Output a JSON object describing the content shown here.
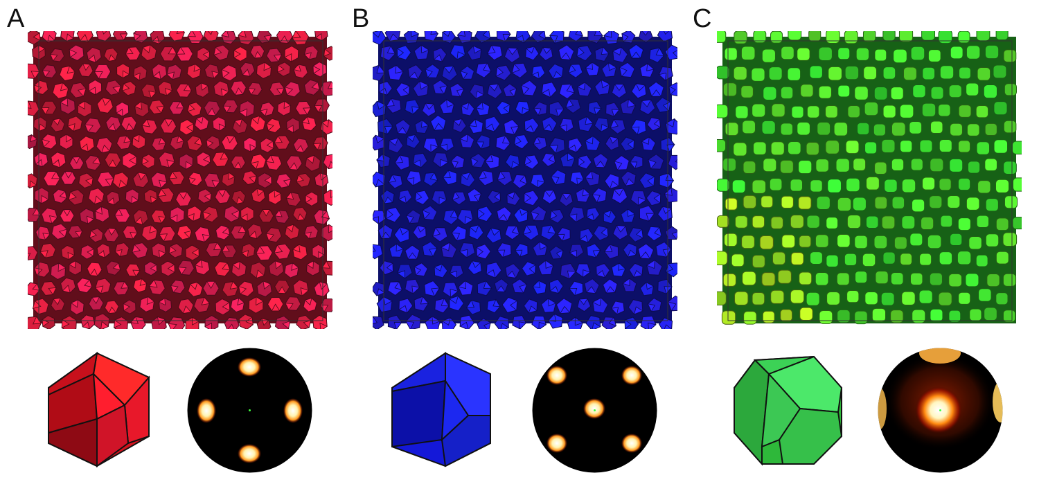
{
  "panels": [
    {
      "label": "A",
      "shape_name": "icosahedron",
      "colors": {
        "base": "#d81e3c",
        "light": "#ff2a4e",
        "dark": "#8a0c22",
        "accent": "#c0187a"
      },
      "bop_pattern": "icosahedral-six-spot"
    },
    {
      "label": "B",
      "shape_name": "pentagonal-polyhedron",
      "colors": {
        "base": "#1a22e6",
        "light": "#3a3cff",
        "dark": "#0a0e90",
        "accent": "#4a18d0"
      },
      "bop_pattern": "five-spot"
    },
    {
      "label": "C",
      "shape_name": "truncated-cube",
      "colors": {
        "base": "#32d830",
        "light": "#6cf060",
        "dark": "#1a8a1c",
        "accent": "#b8e020"
      },
      "bop_pattern": "single-spot-diffuse"
    }
  ]
}
